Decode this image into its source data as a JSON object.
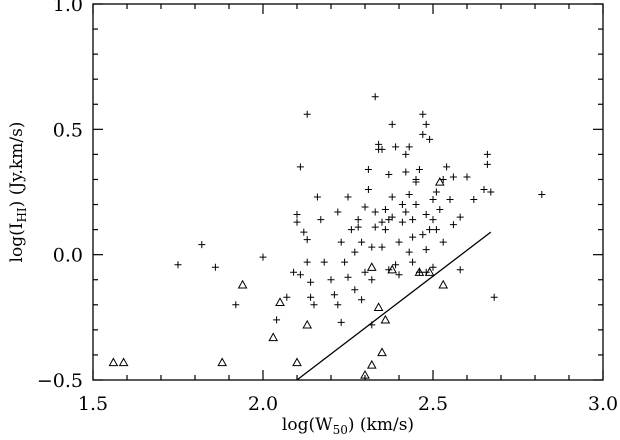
{
  "chart_data": {
    "type": "scatter",
    "title": "",
    "xlabel": "log(W50) (km/s)",
    "ylabel": "log(IHI) (Jy.km/s)",
    "xlabel_parts": {
      "pre": "log(W",
      "sub": "50",
      "post": ") (km/s)"
    },
    "ylabel_parts": {
      "pre": "log(I",
      "sub": "HI",
      "post": ") (Jy.km/s)"
    },
    "xlim": [
      1.5,
      3.0
    ],
    "ylim": [
      -0.5,
      1.0
    ],
    "xticks": [
      1.5,
      2.0,
      2.5,
      3.0
    ],
    "xtick_labels": [
      "1.5",
      "2.0",
      "2.5",
      "3.0"
    ],
    "yticks": [
      -0.5,
      0.0,
      0.5,
      1.0
    ],
    "ytick_labels": [
      "−0.5",
      "0.0",
      "0.5",
      "1.0"
    ],
    "grid": false,
    "series": [
      {
        "marker": "plus",
        "points": [
          [
            1.75,
            -0.04
          ],
          [
            1.82,
            0.04
          ],
          [
            1.86,
            -0.05
          ],
          [
            1.92,
            -0.2
          ],
          [
            2.0,
            -0.01
          ],
          [
            2.04,
            -0.26
          ],
          [
            2.07,
            -0.17
          ],
          [
            2.09,
            -0.07
          ],
          [
            2.1,
            0.13
          ],
          [
            2.1,
            0.16
          ],
          [
            2.11,
            0.35
          ],
          [
            2.11,
            -0.08
          ],
          [
            2.12,
            0.09
          ],
          [
            2.13,
            0.56
          ],
          [
            2.13,
            0.06
          ],
          [
            2.13,
            -0.03
          ],
          [
            2.14,
            -0.11
          ],
          [
            2.14,
            -0.17
          ],
          [
            2.15,
            -0.2
          ],
          [
            2.16,
            0.23
          ],
          [
            2.17,
            0.14
          ],
          [
            2.18,
            -0.03
          ],
          [
            2.2,
            -0.1
          ],
          [
            2.21,
            -0.16
          ],
          [
            2.22,
            -0.2
          ],
          [
            2.22,
            0.17
          ],
          [
            2.23,
            -0.27
          ],
          [
            2.23,
            0.05
          ],
          [
            2.24,
            -0.03
          ],
          [
            2.25,
            -0.09
          ],
          [
            2.25,
            0.23
          ],
          [
            2.26,
            0.1
          ],
          [
            2.27,
            -0.14
          ],
          [
            2.27,
            0.01
          ],
          [
            2.28,
            0.11
          ],
          [
            2.28,
            0.14
          ],
          [
            2.29,
            0.05
          ],
          [
            2.29,
            -0.18
          ],
          [
            2.3,
            -0.07
          ],
          [
            2.3,
            0.19
          ],
          [
            2.31,
            0.26
          ],
          [
            2.31,
            0.34
          ],
          [
            2.32,
            -0.1
          ],
          [
            2.32,
            -0.28
          ],
          [
            2.32,
            0.03
          ],
          [
            2.33,
            0.11
          ],
          [
            2.33,
            0.17
          ],
          [
            2.33,
            0.63
          ],
          [
            2.34,
            0.44
          ],
          [
            2.34,
            0.42
          ],
          [
            2.35,
            0.42
          ],
          [
            2.35,
            0.13
          ],
          [
            2.35,
            0.03
          ],
          [
            2.36,
            0.18
          ],
          [
            2.36,
            0.1
          ],
          [
            2.37,
            -0.06
          ],
          [
            2.37,
            0.14
          ],
          [
            2.37,
            0.32
          ],
          [
            2.38,
            0.52
          ],
          [
            2.38,
            0.23
          ],
          [
            2.38,
            0.15
          ],
          [
            2.39,
            0.43
          ],
          [
            2.39,
            -0.04
          ],
          [
            2.4,
            0.05
          ],
          [
            2.4,
            -0.08
          ],
          [
            2.41,
            0.2
          ],
          [
            2.41,
            0.13
          ],
          [
            2.42,
            0.33
          ],
          [
            2.42,
            0.4
          ],
          [
            2.42,
            0.17
          ],
          [
            2.43,
            0.24
          ],
          [
            2.43,
            0.43
          ],
          [
            2.43,
            0.01
          ],
          [
            2.44,
            -0.03
          ],
          [
            2.44,
            0.07
          ],
          [
            2.44,
            0.14
          ],
          [
            2.45,
            0.2
          ],
          [
            2.45,
            0.29
          ],
          [
            2.45,
            0.3
          ],
          [
            2.46,
            0.34
          ],
          [
            2.46,
            -0.07
          ],
          [
            2.47,
            0.48
          ],
          [
            2.47,
            0.56
          ],
          [
            2.47,
            0.08
          ],
          [
            2.48,
            0.16
          ],
          [
            2.48,
            0.52
          ],
          [
            2.48,
            0.02
          ],
          [
            2.48,
            -0.07
          ],
          [
            2.49,
            0.46
          ],
          [
            2.49,
            0.1
          ],
          [
            2.5,
            0.14
          ],
          [
            2.5,
            0.22
          ],
          [
            2.5,
            -0.05
          ],
          [
            2.51,
            0.25
          ],
          [
            2.51,
            0.1
          ],
          [
            2.52,
            0.18
          ],
          [
            2.53,
            0.3
          ],
          [
            2.53,
            0.05
          ],
          [
            2.54,
            0.35
          ],
          [
            2.55,
            0.22
          ],
          [
            2.56,
            0.31
          ],
          [
            2.56,
            0.12
          ],
          [
            2.58,
            -0.06
          ],
          [
            2.58,
            0.15
          ],
          [
            2.6,
            0.31
          ],
          [
            2.62,
            0.22
          ],
          [
            2.65,
            0.26
          ],
          [
            2.66,
            0.36
          ],
          [
            2.66,
            0.4
          ],
          [
            2.67,
            0.25
          ],
          [
            2.68,
            -0.17
          ],
          [
            2.82,
            0.24
          ]
        ]
      },
      {
        "marker": "triangle",
        "points": [
          [
            1.56,
            -0.43
          ],
          [
            1.59,
            -0.43
          ],
          [
            1.88,
            -0.43
          ],
          [
            1.94,
            -0.12
          ],
          [
            2.05,
            -0.19
          ],
          [
            2.03,
            -0.33
          ],
          [
            2.1,
            -0.43
          ],
          [
            2.13,
            -0.28
          ],
          [
            2.3,
            -0.48
          ],
          [
            2.32,
            -0.05
          ],
          [
            2.32,
            -0.44
          ],
          [
            2.34,
            -0.21
          ],
          [
            2.35,
            -0.39
          ],
          [
            2.36,
            -0.26
          ],
          [
            2.38,
            -0.06
          ],
          [
            2.46,
            -0.07
          ],
          [
            2.49,
            -0.07
          ],
          [
            2.52,
            0.29
          ],
          [
            2.53,
            -0.12
          ]
        ]
      }
    ],
    "lines": [
      {
        "x": [
          2.09,
          2.67
        ],
        "y": [
          -0.51,
          0.09
        ]
      }
    ]
  }
}
